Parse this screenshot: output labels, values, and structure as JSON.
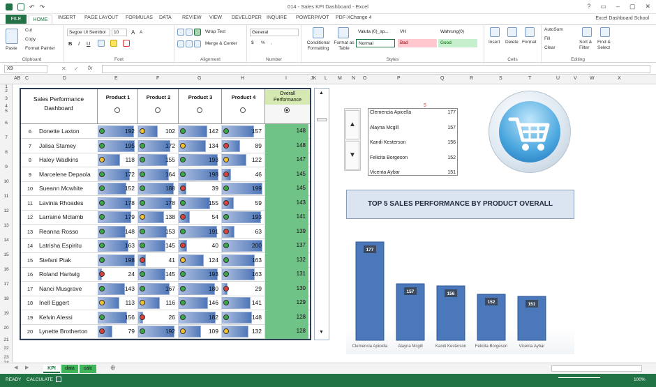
{
  "window": {
    "title": "014 - Sales KPI Dashboard - Excel",
    "controls": [
      "?",
      "▭",
      "–",
      "▢",
      "✕"
    ]
  },
  "ribbon_tabs": {
    "file": "FILE",
    "home": "HOME",
    "tabs": [
      "INSERT",
      "PAGE LAYOUT",
      "FORMULAS",
      "DATA",
      "REVIEW",
      "VIEW",
      "DEVELOPER",
      "INQUIRE",
      "POWERPIVOT",
      "PDF-XChange 4"
    ],
    "user": "Excel Dashboard School"
  },
  "ribbon": {
    "clipboard": {
      "paste": "Paste",
      "cut": "Cut",
      "copy": "Copy",
      "painter": "Format Painter",
      "label": "Clipboard"
    },
    "font": {
      "name": "Segoe UI Semibol",
      "size": "10",
      "bold": "B",
      "italic": "I",
      "underline": "U",
      "grow": "A",
      "shrink": "A",
      "label": "Font"
    },
    "alignment": {
      "wrap": "Wrap Text",
      "merge": "Merge & Center",
      "label": "Alignment"
    },
    "number": {
      "format": "General",
      "currency": "$",
      "pct": "%",
      "comma": ",",
      "label": "Number"
    },
    "styles": {
      "cond": "Conditional Formatting",
      "table": "Format as Table",
      "cell1": "Valuta (0)_sp...",
      "cell2": "VH",
      "cell3": "Wahrung(0)",
      "normal": "Normal",
      "bad": "Bad",
      "good": "Good",
      "label": "Styles"
    },
    "cells": {
      "insert": "Insert",
      "delete": "Delete",
      "format": "Format",
      "label": "Cells"
    },
    "editing": {
      "autosum": "AutoSum",
      "fill": "Fill",
      "clear": "Clear",
      "sort": "Sort & Filter",
      "find": "Find & Select",
      "label": "Editing"
    }
  },
  "formula_bar": {
    "namebox": "X9",
    "cancel": "✕",
    "enter": "✓",
    "fx": "fx",
    "value": ""
  },
  "columns": [
    "AB",
    "C",
    "D",
    "E",
    "F",
    "G",
    "H",
    "I",
    "JK",
    "L",
    "M",
    "N",
    "O",
    "P",
    "Q",
    "R",
    "S",
    "T",
    "U",
    "V",
    "W",
    "X"
  ],
  "rows": [
    "1",
    "2",
    "3",
    "4",
    "5",
    "6",
    "7",
    "8",
    "9",
    "10",
    "11",
    "12",
    "13",
    "14",
    "15",
    "16",
    "17",
    "18",
    "19",
    "20",
    "21",
    "22",
    "23",
    "24"
  ],
  "table": {
    "header": {
      "title": "Sales Performance Dashboard",
      "p1": "Product 1",
      "p2": "Product 2",
      "p3": "Product 3",
      "p4": "Product 4",
      "overall": "Overall Performance"
    },
    "rows": [
      {
        "n": "6",
        "name": "Donette Laxton",
        "p": [
          192,
          102,
          142,
          157
        ],
        "o": 148
      },
      {
        "n": "7",
        "name": "Jalisa Stamey",
        "p": [
          195,
          172,
          134,
          89
        ],
        "o": 148
      },
      {
        "n": "8",
        "name": "Haley Wadkins",
        "p": [
          118,
          155,
          193,
          122
        ],
        "o": 147
      },
      {
        "n": "9",
        "name": "Marcelene Depaola",
        "p": [
          172,
          164,
          198,
          46
        ],
        "o": 145
      },
      {
        "n": "10",
        "name": "Sueann Mcwhite",
        "p": [
          152,
          188,
          39,
          199
        ],
        "o": 145
      },
      {
        "n": "11",
        "name": "Lavinia Rhoades",
        "p": [
          178,
          178,
          155,
          59
        ],
        "o": 143
      },
      {
        "n": "12",
        "name": "Larraine Mclamb",
        "p": [
          179,
          138,
          54,
          193
        ],
        "o": 141
      },
      {
        "n": "13",
        "name": "Reanna Rosso",
        "p": [
          148,
          153,
          191,
          63
        ],
        "o": 139
      },
      {
        "n": "14",
        "name": "Latrisha Espiritu",
        "p": [
          163,
          145,
          40,
          200
        ],
        "o": 137
      },
      {
        "n": "15",
        "name": "Stefani Ptak",
        "p": [
          198,
          41,
          124,
          163
        ],
        "o": 132
      },
      {
        "n": "16",
        "name": "Roland Hartwig",
        "p": [
          24,
          145,
          193,
          163
        ],
        "o": 131
      },
      {
        "n": "17",
        "name": "Nanci Musgrave",
        "p": [
          143,
          167,
          180,
          29
        ],
        "o": 130
      },
      {
        "n": "18",
        "name": "Inell Eggert",
        "p": [
          113,
          116,
          146,
          141
        ],
        "o": 129
      },
      {
        "n": "19",
        "name": "Kelvin Alessi",
        "p": [
          156,
          26,
          182,
          148
        ],
        "o": 128
      },
      {
        "n": "20",
        "name": "Lynette Brotherton",
        "p": [
          79,
          192,
          109,
          132
        ],
        "o": 128
      }
    ]
  },
  "top5_marker": "5",
  "top5": [
    {
      "name": "Clemencia Apicella",
      "v": "177"
    },
    {
      "name": "Alayna Mcgill",
      "v": "157"
    },
    {
      "name": "Kandi Kesterson",
      "v": "156"
    },
    {
      "name": "Felicita Borgeson",
      "v": "152"
    },
    {
      "name": "Vicenta Aybar",
      "v": "151"
    }
  ],
  "chart_title": "TOP 5 SALES PERFORMANCE BY PRODUCT OVERALL",
  "chart_data": {
    "type": "bar",
    "categories": [
      "Clemencia Apicella",
      "Alayna Mcgill",
      "Kandi Kesterson",
      "Felicita Borgeson",
      "Vicenta Aybar"
    ],
    "values": [
      177,
      157,
      156,
      152,
      151
    ],
    "title": "TOP 5 SALES PERFORMANCE BY PRODUCT OVERALL",
    "xlabel": "",
    "ylabel": "",
    "ylim": [
      130,
      180
    ],
    "grid": false,
    "color": "#4a78bb"
  },
  "sheet_tabs": [
    "KPI",
    "data",
    "calc"
  ],
  "status": {
    "left": "READY",
    "calc": "CALCULATE",
    "zoom": "100%"
  },
  "colors": {
    "accent": "#217346",
    "good": "#6fc386",
    "bar": "#4a78bb",
    "dot_green": "#3aa845",
    "dot_yellow": "#f2c230",
    "dot_red": "#d9413a"
  }
}
